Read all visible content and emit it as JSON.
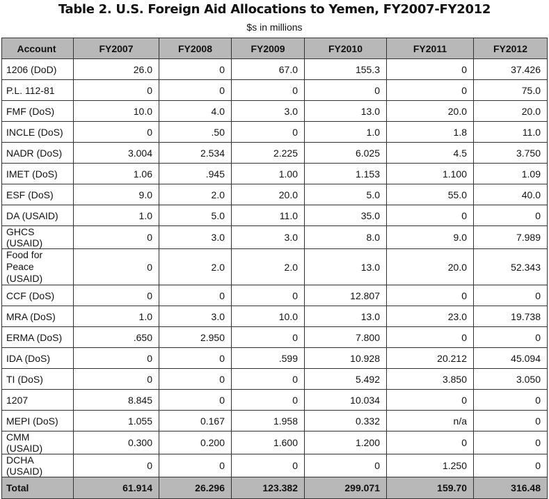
{
  "header": {
    "title": "Table 2. U.S. Foreign Aid Allocations to Yemen, FY2007-FY2012",
    "subtitle": "$s in millions"
  },
  "table": {
    "columns": [
      "Account",
      "FY2007",
      "FY2008",
      "FY2009",
      "FY2010",
      "FY2011",
      "FY2012"
    ],
    "rows": [
      [
        "1206 (DoD)",
        "26.0",
        "0",
        "67.0",
        "155.3",
        "0",
        "37.426"
      ],
      [
        "P.L. 112-81",
        "0",
        "0",
        "0",
        "0",
        "0",
        "75.0"
      ],
      [
        "FMF (DoS)",
        "10.0",
        "4.0",
        "3.0",
        "13.0",
        "20.0",
        "20.0"
      ],
      [
        "INCLE (DoS)",
        "0",
        ".50",
        "0",
        "1.0",
        "1.8",
        "11.0"
      ],
      [
        "NADR (DoS)",
        "3.004",
        "2.534",
        "2.225",
        "6.025",
        "4.5",
        "3.750"
      ],
      [
        "IMET (DoS)",
        "1.06",
        ".945",
        "1.00",
        "1.153",
        "1.100",
        "1.09"
      ],
      [
        "ESF (DoS)",
        "9.0",
        "2.0",
        "20.0",
        "5.0",
        "55.0",
        "40.0"
      ],
      [
        "DA (USAID)",
        "1.0",
        "5.0",
        "11.0",
        "35.0",
        "0",
        "0"
      ],
      [
        "GHCS (USAID)",
        "0",
        "3.0",
        "3.0",
        "8.0",
        "9.0",
        "7.989"
      ],
      [
        "Food for Peace (USAID)",
        "0",
        "2.0",
        "2.0",
        "13.0",
        "20.0",
        "52.343"
      ],
      [
        "CCF (DoS)",
        "0",
        "0",
        "0",
        "12.807",
        "0",
        "0"
      ],
      [
        "MRA (DoS)",
        "1.0",
        "3.0",
        "10.0",
        "13.0",
        "23.0",
        "19.738"
      ],
      [
        "ERMA (DoS)",
        ".650",
        "2.950",
        "0",
        "7.800",
        "0",
        "0"
      ],
      [
        "IDA (DoS)",
        "0",
        "0",
        ".599",
        "10.928",
        "20.212",
        "45.094"
      ],
      [
        "TI (DoS)",
        "0",
        "0",
        "0",
        "5.492",
        "3.850",
        "3.050"
      ],
      [
        "1207",
        "8.845",
        "0",
        "0",
        "10.034",
        "0",
        "0"
      ],
      [
        "MEPI (DoS)",
        "1.055",
        "0.167",
        "1.958",
        "0.332",
        "n/a",
        "0"
      ],
      [
        "CMM (USAID)",
        "0.300",
        "0.200",
        "1.600",
        "1.200",
        "0",
        "0"
      ],
      [
        "DCHA (USAID)",
        "0",
        "0",
        "0",
        "0",
        "1.250",
        "0"
      ]
    ],
    "total": [
      "Total",
      "61.914",
      "26.296",
      "123.382",
      "299.071",
      "159.70",
      "316.48"
    ]
  }
}
